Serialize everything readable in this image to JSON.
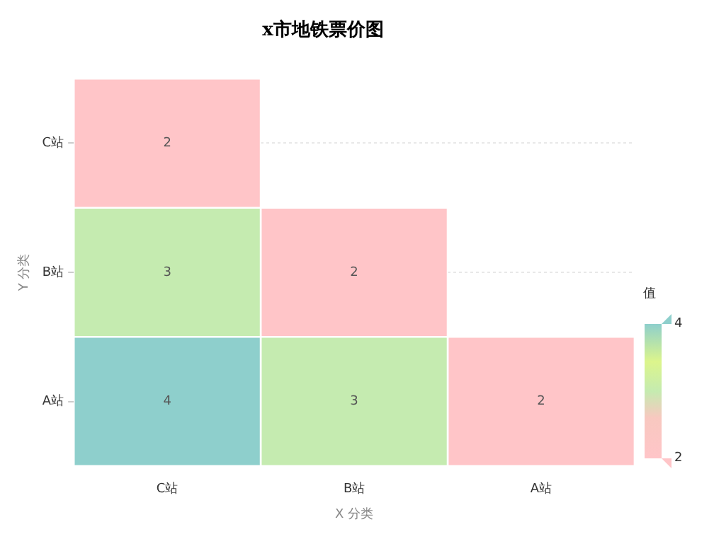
{
  "chart_data": {
    "type": "heatmap",
    "title": "x市地铁票价图",
    "xlabel": "X 分类",
    "ylabel": "Y 分类",
    "legend_title": "值",
    "categories": [
      "C站",
      "B站",
      "A站"
    ],
    "y_categories": [
      "C站",
      "B站",
      "A站"
    ],
    "cells": [
      [
        2,
        null,
        null
      ],
      [
        3,
        2,
        null
      ],
      [
        4,
        3,
        2
      ]
    ],
    "clim": [
      2,
      4
    ],
    "cticks": [
      2,
      4
    ],
    "data_labels": true,
    "grid": "y"
  }
}
